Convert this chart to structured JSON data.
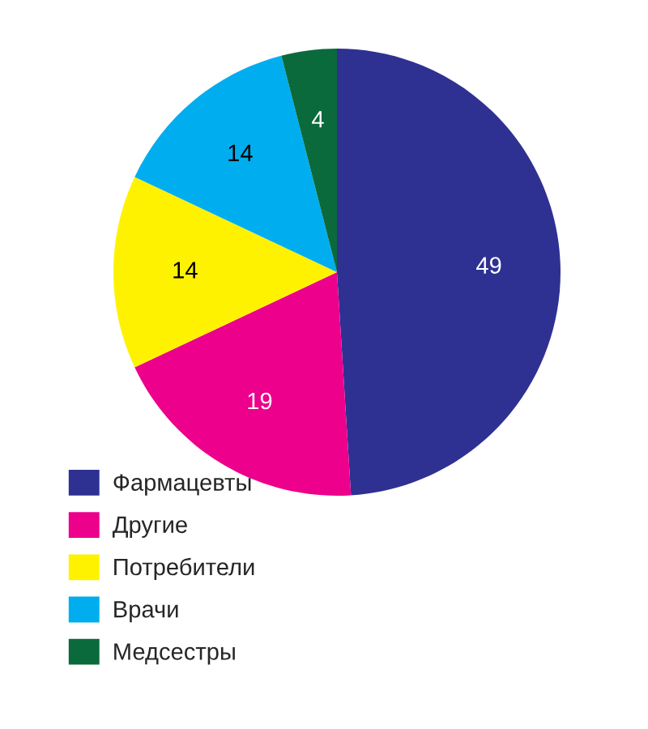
{
  "chart_data": {
    "type": "pie",
    "categories": [
      "Фармацевты",
      "Другие",
      "Потребители",
      "Врачи",
      "Медсестры"
    ],
    "values": [
      49,
      19,
      14,
      14,
      4
    ],
    "colors": [
      "#2e3192",
      "#ec008c",
      "#fff200",
      "#00aeef",
      "#0a6a3b"
    ],
    "data_labels": true,
    "legend": "bottom left"
  }
}
